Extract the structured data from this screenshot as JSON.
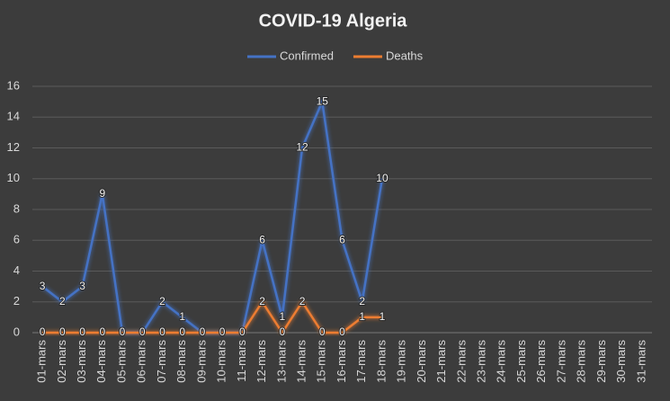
{
  "chart_data": {
    "type": "line",
    "title": "COVID-19 Algeria",
    "categories": [
      "01-mars",
      "02-mars",
      "03-mars",
      "04-mars",
      "05-mars",
      "06-mars",
      "07-mars",
      "08-mars",
      "09-mars",
      "10-mars",
      "11-mars",
      "12-mars",
      "13-mars",
      "14-mars",
      "15-mars",
      "16-mars",
      "17-mars",
      "18-mars",
      "19-mars",
      "20-mars",
      "21-mars",
      "22-mars",
      "23-mars",
      "24-mars",
      "25-mars",
      "26-mars",
      "27-mars",
      "28-mars",
      "29-mars",
      "30-mars",
      "31-mars"
    ],
    "series": [
      {
        "name": "Confirmed",
        "color": "#4472c4",
        "values": [
          3,
          2,
          3,
          9,
          0,
          0,
          2,
          1,
          0,
          0,
          0,
          6,
          1,
          12,
          15,
          6,
          2,
          10,
          null,
          null,
          null,
          null,
          null,
          null,
          null,
          null,
          null,
          null,
          null,
          null,
          null
        ]
      },
      {
        "name": "Deaths",
        "color": "#ed7d31",
        "values": [
          0,
          0,
          0,
          0,
          0,
          0,
          0,
          0,
          0,
          0,
          0,
          2,
          0,
          2,
          0,
          0,
          1,
          1,
          null,
          null,
          null,
          null,
          null,
          null,
          null,
          null,
          null,
          null,
          null,
          null,
          null
        ]
      }
    ],
    "ylim": [
      0,
      16
    ],
    "yticks": [
      0,
      2,
      4,
      6,
      8,
      10,
      12,
      14,
      16
    ],
    "grid": true,
    "legend": "top"
  }
}
